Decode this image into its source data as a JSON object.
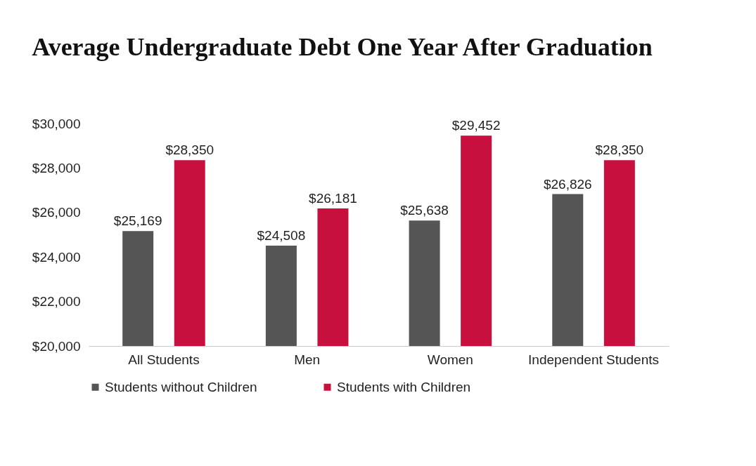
{
  "chart_data": {
    "type": "bar",
    "title": "Average Undergraduate Debt One Year After Graduation",
    "categories": [
      "All Students",
      "Men",
      "Women",
      "Independent Students"
    ],
    "series": [
      {
        "name": "Students without Children",
        "color": "#555555",
        "values": [
          25169,
          24508,
          25638,
          26826
        ],
        "value_labels": [
          "$25,169",
          "$24,508",
          "$25,638",
          "$26,826"
        ]
      },
      {
        "name": "Students with Children",
        "color": "#c8103e",
        "values": [
          28350,
          26181,
          29452,
          28350
        ],
        "value_labels": [
          "$28,350",
          "$26,181",
          "$29,452",
          "$28,350"
        ]
      }
    ],
    "ylim": [
      20000,
      30000
    ],
    "yticks": [
      {
        "value": 20000,
        "label": "$20,000"
      },
      {
        "value": 22000,
        "label": "$22,000"
      },
      {
        "value": 24000,
        "label": "$24,000"
      },
      {
        "value": 26000,
        "label": "$26,000"
      },
      {
        "value": 28000,
        "label": "$28,000"
      },
      {
        "value": 30000,
        "label": "$30,000"
      }
    ],
    "grid": false,
    "legend": "bottom"
  }
}
